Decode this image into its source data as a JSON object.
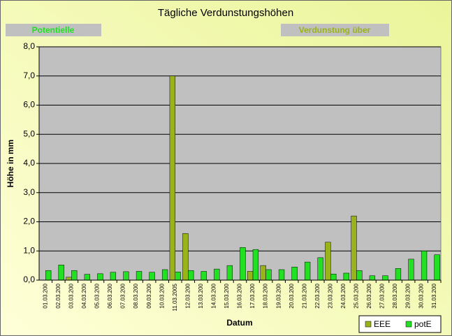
{
  "chart_data": {
    "type": "bar",
    "title": "Tägliche Verdunstungshöhen",
    "annotations": [
      "Potentielle",
      "Verdunstung über"
    ],
    "x_label": "Datum",
    "y_label": "Höhe in mm",
    "categories": [
      "01.03.200",
      "02.03.200",
      "03.03.200",
      "04.03.200",
      "05.03.200",
      "06.03.200",
      "07.03.200",
      "08.03.200",
      "09.03.200",
      "10.03.200",
      "11.03.2005",
      "12.03.200",
      "13.03.200",
      "14.03.200",
      "15.03.200",
      "16.03.200",
      "17.03.200",
      "18.03.200",
      "19.03.200",
      "20.03.200",
      "21.03.200",
      "22.03.200",
      "23.03.200",
      "24.03.200",
      "25.03.200",
      "26.03.200",
      "27.03.200",
      "28.03.200",
      "29.03.200",
      "30.03.200",
      "31.03.200"
    ],
    "series": [
      {
        "name": "EEE",
        "color": "#99b31a",
        "values": [
          0,
          0,
          0.1,
          0,
          0,
          0,
          0,
          0,
          0,
          0,
          7.0,
          1.6,
          0,
          0,
          0,
          0,
          0.3,
          0.5,
          0,
          0,
          0,
          0,
          1.3,
          0,
          2.2,
          0,
          0,
          0,
          0,
          0,
          0
        ]
      },
      {
        "name": "potE",
        "color": "#22e022",
        "values": [
          0.33,
          0.52,
          0.33,
          0.2,
          0.22,
          0.27,
          0.29,
          0.3,
          0.27,
          0.36,
          0.28,
          0.33,
          0.3,
          0.38,
          0.5,
          1.12,
          1.05,
          0.36,
          0.36,
          0.45,
          0.62,
          0.77,
          0.21,
          0.24,
          0.33,
          0.15,
          0.15,
          0.4,
          0.72,
          1.0,
          0.87
        ]
      }
    ],
    "ylim": [
      0,
      8
    ],
    "yticks": [
      {
        "value": 0,
        "label": "0,0"
      },
      {
        "value": 1,
        "label": "1,0"
      },
      {
        "value": 2,
        "label": "2,0"
      },
      {
        "value": 3,
        "label": "3,0"
      },
      {
        "value": 4,
        "label": "4,0"
      },
      {
        "value": 5,
        "label": "5,0"
      },
      {
        "value": 6,
        "label": "6,0"
      },
      {
        "value": 7,
        "label": "7,0"
      },
      {
        "value": 8,
        "label": "8,0"
      }
    ],
    "grid": true,
    "legend": "bottom-right"
  }
}
